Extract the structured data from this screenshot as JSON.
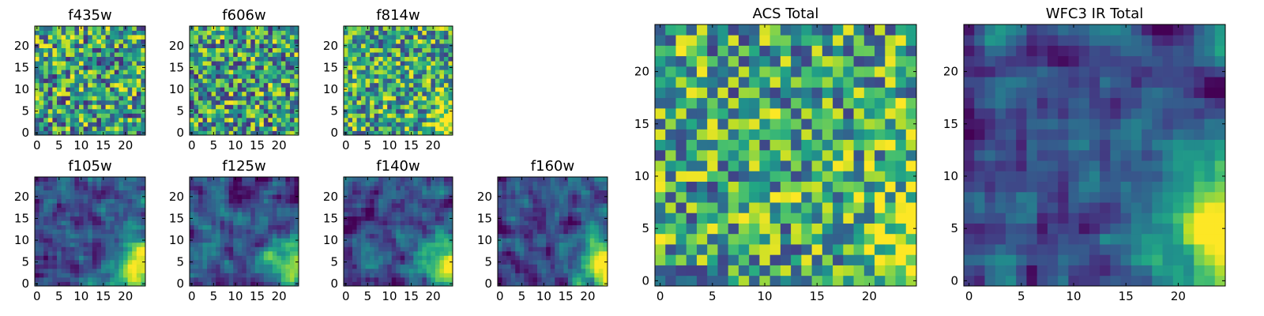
{
  "chart_data": [
    {
      "type": "heatmap",
      "title": "f435w",
      "size": 25,
      "trend": "flat",
      "seed": 11,
      "xticks": [
        "0",
        "5",
        "10",
        "15",
        "20"
      ],
      "yticks": [
        "0",
        "5",
        "10",
        "15",
        "20"
      ],
      "xlim": [
        -0.5,
        24.5
      ],
      "ylim": [
        -0.5,
        24.5
      ],
      "colormap": "viridis"
    },
    {
      "type": "heatmap",
      "title": "f606w",
      "size": 25,
      "trend": "flat",
      "seed": 23,
      "xticks": [
        "0",
        "5",
        "10",
        "15",
        "20"
      ],
      "yticks": [
        "0",
        "5",
        "10",
        "15",
        "20"
      ],
      "xlim": [
        -0.5,
        24.5
      ],
      "ylim": [
        -0.5,
        24.5
      ],
      "colormap": "viridis"
    },
    {
      "type": "heatmap",
      "title": "f814w",
      "size": 25,
      "trend": "corner",
      "seed": 37,
      "xticks": [
        "0",
        "5",
        "10",
        "15",
        "20"
      ],
      "yticks": [
        "0",
        "5",
        "10",
        "15",
        "20"
      ],
      "xlim": [
        -0.5,
        24.5
      ],
      "ylim": [
        -0.5,
        24.5
      ],
      "colormap": "viridis"
    },
    {
      "type": "heatmap",
      "title": "f105w",
      "size": 25,
      "trend": "smooth-corner",
      "seed": 41,
      "xticks": [
        "0",
        "5",
        "10",
        "15",
        "20"
      ],
      "yticks": [
        "0",
        "5",
        "10",
        "15",
        "20"
      ],
      "xlim": [
        -0.5,
        24.5
      ],
      "ylim": [
        -0.5,
        24.5
      ],
      "colormap": "viridis"
    },
    {
      "type": "heatmap",
      "title": "f125w",
      "size": 25,
      "trend": "smooth-corner",
      "seed": 53,
      "xticks": [
        "0",
        "5",
        "10",
        "15",
        "20"
      ],
      "yticks": [
        "0",
        "5",
        "10",
        "15",
        "20"
      ],
      "xlim": [
        -0.5,
        24.5
      ],
      "ylim": [
        -0.5,
        24.5
      ],
      "colormap": "viridis"
    },
    {
      "type": "heatmap",
      "title": "f140w",
      "size": 25,
      "trend": "smooth-corner",
      "seed": 67,
      "xticks": [
        "0",
        "5",
        "10",
        "15",
        "20"
      ],
      "yticks": [
        "0",
        "5",
        "10",
        "15",
        "20"
      ],
      "xlim": [
        -0.5,
        24.5
      ],
      "ylim": [
        -0.5,
        24.5
      ],
      "colormap": "viridis"
    },
    {
      "type": "heatmap",
      "title": "f160w",
      "size": 25,
      "trend": "smooth-corner",
      "seed": 79,
      "xticks": [
        "0",
        "5",
        "10",
        "15",
        "20"
      ],
      "yticks": [
        "0",
        "5",
        "10",
        "15",
        "20"
      ],
      "xlim": [
        -0.5,
        24.5
      ],
      "ylim": [
        -0.5,
        24.5
      ],
      "colormap": "viridis"
    },
    {
      "type": "heatmap",
      "title": "ACS Total",
      "size": 25,
      "trend": "corner",
      "seed": 97,
      "xticks": [
        "0",
        "5",
        "10",
        "15",
        "20"
      ],
      "yticks": [
        "0",
        "5",
        "10",
        "15",
        "20"
      ],
      "xlim": [
        -0.5,
        24.5
      ],
      "ylim": [
        -0.5,
        24.5
      ],
      "colormap": "viridis"
    },
    {
      "type": "heatmap",
      "title": "WFC3 IR Total",
      "size": 25,
      "trend": "smooth-corner",
      "seed": 113,
      "xticks": [
        "0",
        "5",
        "10",
        "15",
        "20"
      ],
      "yticks": [
        "0",
        "5",
        "10",
        "15",
        "20"
      ],
      "xlim": [
        -0.5,
        24.5
      ],
      "ylim": [
        -0.5,
        24.5
      ],
      "colormap": "viridis"
    }
  ]
}
